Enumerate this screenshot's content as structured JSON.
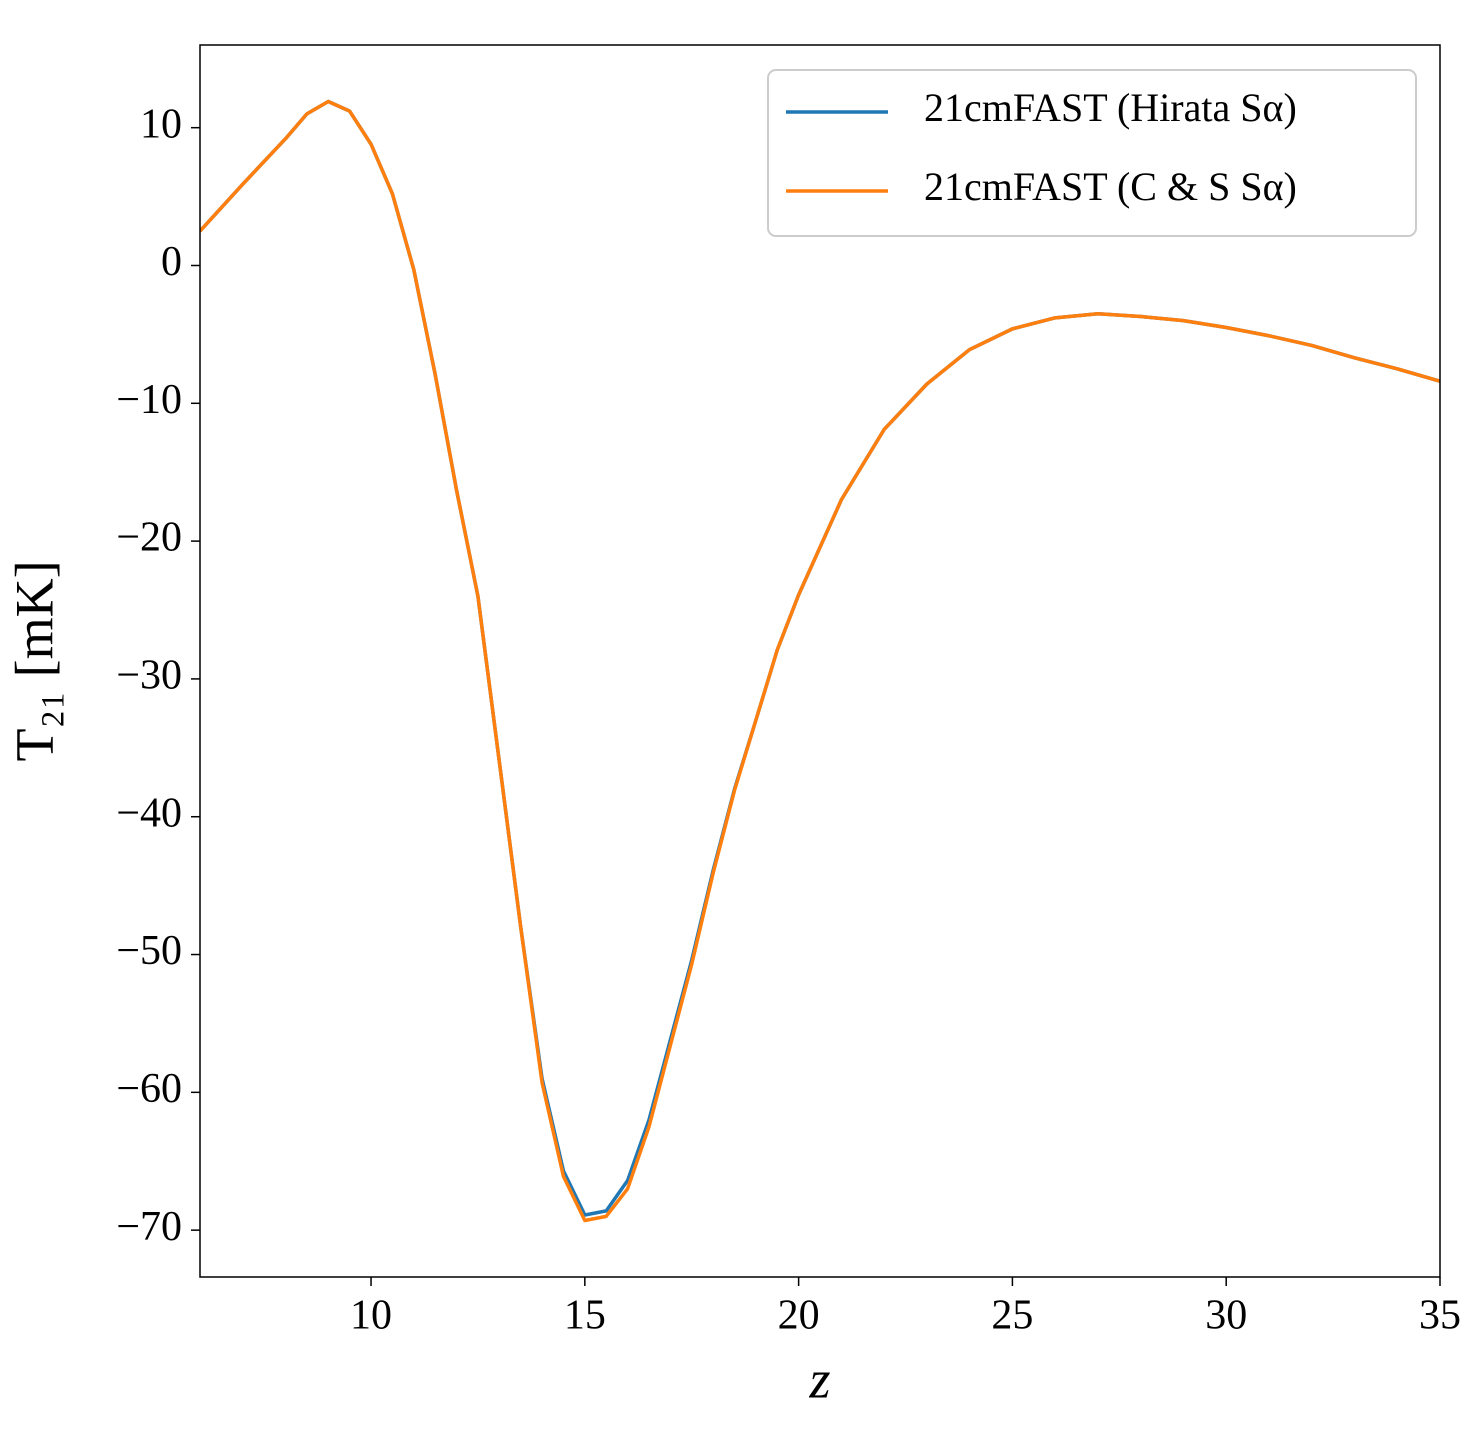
{
  "chart_data": {
    "type": "line",
    "xlabel": "z",
    "ylabel": "T₂₁ [mK]",
    "x": [
      6,
      7,
      8,
      8.5,
      9,
      9.5,
      10,
      10.5,
      11,
      11.5,
      12,
      12.5,
      13,
      13.5,
      14,
      14.5,
      15,
      15.5,
      16,
      16.5,
      17,
      17.5,
      18,
      18.5,
      19,
      19.5,
      20,
      21,
      22,
      23,
      24,
      25,
      26,
      27,
      28,
      29,
      30,
      31,
      32,
      33,
      34,
      35
    ],
    "series": [
      {
        "name": "21cmFAST (Hirata Sα)",
        "color": "#1f77b4",
        "values": [
          2.5,
          5.9,
          9.2,
          11,
          11.9,
          11.2,
          8.8,
          5.2,
          -0.3,
          -7.9,
          -16.3,
          -24,
          -36,
          -48,
          -59,
          -65.7,
          -68.9,
          -68.6,
          -66.4,
          -62,
          -56.2,
          -50.4,
          -43.9,
          -38,
          -33,
          -27.9,
          -23.9,
          -17,
          -11.9,
          -8.6,
          -6.1,
          -4.6,
          -3.8,
          -3.5,
          -3.7,
          -4.0,
          -4.5,
          -5.1,
          -5.8,
          -6.7,
          -7.5,
          -8.4
        ]
      },
      {
        "name": "21cmFAST (C & S Sα)",
        "color": "#ff7f0e",
        "values": [
          2.5,
          5.9,
          9.2,
          11,
          11.9,
          11.2,
          8.8,
          5.2,
          -0.3,
          -7.9,
          -16.3,
          -24,
          -36,
          -48,
          -59.3,
          -66.1,
          -69.3,
          -69.0,
          -67.0,
          -62.5,
          -56.6,
          -50.7,
          -44.1,
          -38.1,
          -33,
          -27.9,
          -23.9,
          -17,
          -11.9,
          -8.6,
          -6.1,
          -4.6,
          -3.8,
          -3.5,
          -3.7,
          -4.0,
          -4.5,
          -5.1,
          -5.8,
          -6.7,
          -7.5,
          -8.4
        ]
      }
    ],
    "xlim": [
      6,
      35
    ],
    "xticks": [
      10,
      15,
      20,
      25,
      30,
      35
    ],
    "ylim": [
      -73.4,
      16
    ],
    "yticks": [
      10,
      0,
      {
        "value": -10,
        "label": "−10"
      },
      {
        "value": -20,
        "label": "−20"
      },
      {
        "value": -30,
        "label": "−30"
      },
      {
        "value": -40,
        "label": "−40"
      },
      {
        "value": -50,
        "label": "−50"
      },
      {
        "value": -60,
        "label": "−60"
      },
      {
        "value": -70,
        "label": "−70"
      }
    ],
    "grid": false,
    "legend": "upper right"
  }
}
